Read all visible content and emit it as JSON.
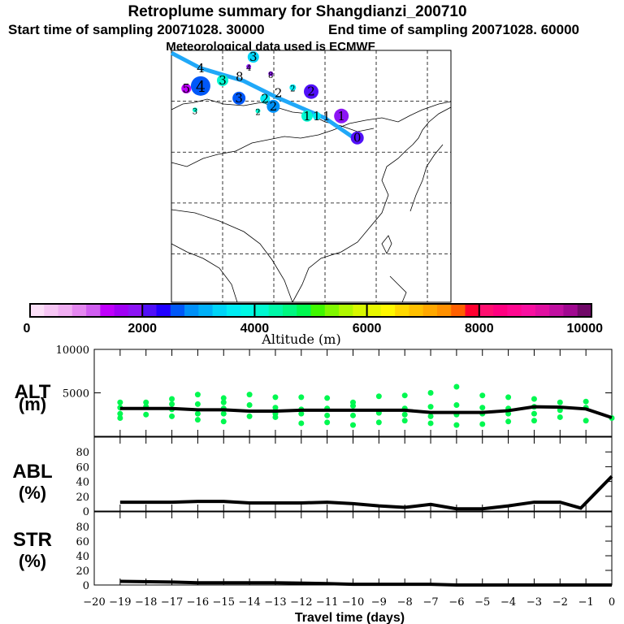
{
  "title": "Retroplume summary for Shangdianzi_200710",
  "subtitle_start": "Start time of sampling 20071028. 30000",
  "subtitle_end": "End time of sampling 20071028. 60000",
  "subtitle_met": "Meteorological data used is ECMWF",
  "chart_data": [
    {
      "type": "scatter",
      "name": "map",
      "lon_range": [
        80,
        134.6
      ],
      "lat_range": [
        10.5,
        60
      ],
      "grid_lon": [
        90,
        100,
        110,
        120,
        130
      ],
      "grid_lat": [
        20,
        30,
        40,
        50
      ],
      "track": [
        [
          80,
          59.5
        ],
        [
          85.7,
          56.5
        ],
        [
          94.1,
          54
        ],
        [
          100.5,
          50.8
        ],
        [
          110,
          46.7
        ],
        [
          116.5,
          42.2
        ]
      ],
      "track_color": "#20a8f8",
      "clusters": [
        {
          "label": "3",
          "lon": 96.0,
          "lat": 58.7,
          "r": 7,
          "color": "#00d4f8"
        },
        {
          "label": "4",
          "lon": 95.1,
          "lat": 56.8,
          "r": 3,
          "color": "#8c14f4"
        },
        {
          "label": "4",
          "lon": 85.7,
          "lat": 56.5,
          "r": 0,
          "color": "#000000"
        },
        {
          "label": "8",
          "lon": 99.4,
          "lat": 55.4,
          "r": 3,
          "color": "#8c14f4"
        },
        {
          "label": "3",
          "lon": 90.0,
          "lat": 54.1,
          "r": 7,
          "color": "#00f8d0"
        },
        {
          "label": "8",
          "lon": 93.3,
          "lat": 54.8,
          "r": 0,
          "color": "#000000"
        },
        {
          "label": "4",
          "lon": 85.7,
          "lat": 53.0,
          "r": 12,
          "color": "#0058f8"
        },
        {
          "label": "5",
          "lon": 82.9,
          "lat": 52.5,
          "r": 6,
          "color": "#c000fc"
        },
        {
          "label": "2",
          "lon": 103.7,
          "lat": 52.7,
          "r": 4,
          "color": "#00ecf4"
        },
        {
          "label": "2",
          "lon": 107.3,
          "lat": 51.9,
          "r": 9,
          "color": "#5010f8"
        },
        {
          "label": "3",
          "lon": 93.2,
          "lat": 50.6,
          "r": 8,
          "color": "#0058f8"
        },
        {
          "label": "3",
          "lon": 84.6,
          "lat": 48.3,
          "r": 3,
          "color": "#00f8d0"
        },
        {
          "label": "2",
          "lon": 98.3,
          "lat": 50.5,
          "r": 6,
          "color": "#00ecf4"
        },
        {
          "label": "2",
          "lon": 100.9,
          "lat": 51.6,
          "r": 0,
          "color": "#000000"
        },
        {
          "label": "2",
          "lon": 99.9,
          "lat": 49.0,
          "r": 8,
          "color": "#0090f8"
        },
        {
          "label": "2",
          "lon": 96.9,
          "lat": 48.1,
          "r": 3,
          "color": "#00f8d0"
        },
        {
          "label": "1",
          "lon": 106.5,
          "lat": 47.1,
          "r": 7,
          "color": "#00f8d0"
        },
        {
          "label": "1",
          "lon": 108.4,
          "lat": 47.1,
          "r": 5,
          "color": "#00ecf4"
        },
        {
          "label": "1",
          "lon": 110.3,
          "lat": 47.1,
          "r": 0,
          "color": "#000000"
        },
        {
          "label": "1",
          "lon": 113.2,
          "lat": 47.1,
          "r": 9,
          "color": "#8c14f4"
        },
        {
          "label": "0",
          "lon": 116.3,
          "lat": 42.8,
          "r": 8,
          "color": "#5010f8"
        }
      ]
    },
    {
      "type": "colorbar",
      "name": "altitude-colorbar",
      "xlabel": "Altitude (m)",
      "range": [
        0,
        10000
      ],
      "tick_labels": [
        "0",
        "2000",
        "4000",
        "6000",
        "8000",
        "10000"
      ],
      "colors": [
        "#fce0f8",
        "#f6c6f4",
        "#f0aef2",
        "#e487f0",
        "#d05ef0",
        "#c000fc",
        "#a000f4",
        "#8c14f4",
        "#5010f8",
        "#2000ff",
        "#0058f8",
        "#0090f8",
        "#00b0f8",
        "#00d4f8",
        "#00ecf4",
        "#00f8e4",
        "#00f8d0",
        "#00f8a8",
        "#00f880",
        "#00f850",
        "#40f800",
        "#80f800",
        "#b0f800",
        "#d8f800",
        "#e8f800",
        "#fff800",
        "#ffd800",
        "#ffc000",
        "#ffa800",
        "#ff9000",
        "#ff6000",
        "#ff0030",
        "#ff1070",
        "#ff0080",
        "#ff0890",
        "#f810a0",
        "#e010a0",
        "#c010a0",
        "#a00890",
        "#700868"
      ]
    },
    {
      "type": "line",
      "name": "alt",
      "ylabel": "ALT",
      "yunit": "(m)",
      "ylim": [
        0,
        10000
      ],
      "yticks": [
        "10000",
        "5000"
      ],
      "x": [
        -19,
        -18,
        -17,
        -16,
        -15,
        -14,
        -13,
        -12,
        -11,
        -10,
        -9,
        -8,
        -7,
        -6,
        -5,
        -4,
        -3,
        -2,
        -1,
        0
      ],
      "values": [
        3200,
        3200,
        3200,
        3050,
        3050,
        2900,
        2900,
        3000,
        3000,
        3000,
        3000,
        3000,
        2750,
        2750,
        2750,
        2950,
        3400,
        3350,
        3150,
        2150
      ],
      "particles": [
        [
          -19,
          2100
        ],
        [
          -19,
          2600
        ],
        [
          -19,
          3300
        ],
        [
          -19,
          3900
        ],
        [
          -18,
          2500
        ],
        [
          -18,
          3400
        ],
        [
          -18,
          3900
        ],
        [
          -17,
          2300
        ],
        [
          -17,
          3100
        ],
        [
          -17,
          3700
        ],
        [
          -17,
          4300
        ],
        [
          -16,
          1900
        ],
        [
          -16,
          2600
        ],
        [
          -16,
          3700
        ],
        [
          -16,
          4800
        ],
        [
          -15,
          1700
        ],
        [
          -15,
          2600
        ],
        [
          -15,
          3200
        ],
        [
          -15,
          3900
        ],
        [
          -15,
          4400
        ],
        [
          -14,
          2300
        ],
        [
          -14,
          3600
        ],
        [
          -14,
          4800
        ],
        [
          -13,
          2200
        ],
        [
          -13,
          2600
        ],
        [
          -13,
          3300
        ],
        [
          -13,
          4500
        ],
        [
          -12,
          1500
        ],
        [
          -12,
          2600
        ],
        [
          -12,
          3100
        ],
        [
          -12,
          4500
        ],
        [
          -11,
          1600
        ],
        [
          -11,
          2400
        ],
        [
          -11,
          3200
        ],
        [
          -11,
          4400
        ],
        [
          -10,
          1300
        ],
        [
          -10,
          2400
        ],
        [
          -10,
          3500
        ],
        [
          -10,
          3900
        ],
        [
          -9,
          1600
        ],
        [
          -9,
          2700
        ],
        [
          -9,
          4600
        ],
        [
          -8,
          1800
        ],
        [
          -8,
          2500
        ],
        [
          -8,
          3200
        ],
        [
          -8,
          4700
        ],
        [
          -7,
          1500
        ],
        [
          -7,
          2300
        ],
        [
          -7,
          3400
        ],
        [
          -7,
          5000
        ],
        [
          -6,
          1300
        ],
        [
          -6,
          2500
        ],
        [
          -6,
          3600
        ],
        [
          -6,
          5700
        ],
        [
          -5,
          1400
        ],
        [
          -5,
          2600
        ],
        [
          -5,
          3300
        ],
        [
          -5,
          4700
        ],
        [
          -4,
          1700
        ],
        [
          -4,
          2600
        ],
        [
          -4,
          3200
        ],
        [
          -4,
          4500
        ],
        [
          -3,
          1800
        ],
        [
          -3,
          2600
        ],
        [
          -3,
          3400
        ],
        [
          -3,
          4300
        ],
        [
          -2,
          2200
        ],
        [
          -2,
          3000
        ],
        [
          -2,
          3900
        ],
        [
          -1,
          1800
        ],
        [
          -1,
          3300
        ],
        [
          -1,
          4000
        ],
        [
          0,
          2100
        ]
      ],
      "particle_color": "#00f850"
    },
    {
      "type": "line",
      "name": "abl",
      "ylabel": "ABL",
      "yunit": "(%)",
      "ylim": [
        0,
        100
      ],
      "yticks": [
        "80",
        "60",
        "40",
        "20",
        "0"
      ],
      "x": [
        -19,
        -18,
        -17,
        -16,
        -15,
        -14,
        -13,
        -12,
        -11,
        -10,
        -9,
        -8,
        -7,
        -6,
        -5,
        -4,
        -3,
        -2,
        -1.2,
        0
      ],
      "values": [
        12,
        12,
        12,
        13,
        13,
        11,
        11,
        11,
        12,
        10,
        7,
        5,
        9,
        3,
        3,
        7,
        12,
        12,
        4,
        47
      ]
    },
    {
      "type": "line",
      "name": "str",
      "ylabel": "STR",
      "yunit": "(%)",
      "ylim": [
        0,
        100
      ],
      "yticks": [
        "80",
        "60",
        "40",
        "20",
        "0"
      ],
      "x": [
        -19,
        -17,
        -16,
        -13,
        -11,
        -10,
        -7,
        -6,
        0
      ],
      "values": [
        5,
        4,
        3,
        3,
        2,
        1,
        1,
        0,
        0
      ],
      "xlabel": "Travel time (days)",
      "xticks": [
        "-20",
        "-19",
        "-18",
        "-17",
        "-16",
        "-15",
        "-14",
        "-13",
        "-12",
        "-11",
        "-10",
        "-9",
        "-8",
        "-7",
        "-6",
        "-5",
        "-4",
        "-3",
        "-2",
        "-1",
        "0"
      ]
    }
  ]
}
